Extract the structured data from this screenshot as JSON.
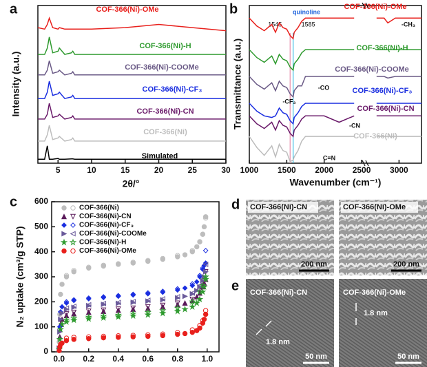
{
  "panel_labels": [
    "a",
    "b",
    "c",
    "d",
    "e"
  ],
  "chart_data": [
    {
      "type": "line",
      "xlabel": "2θ/°",
      "ylabel": "Intensity (a.u.)",
      "xlim": [
        2,
        30
      ],
      "ylim": [
        0,
        10
      ],
      "xticks": [
        5,
        10,
        15,
        20,
        25,
        30
      ],
      "x": [
        2,
        3,
        3.4,
        3.7,
        4.2,
        5,
        5.2,
        6,
        7,
        7.2,
        7.5,
        10,
        15,
        20,
        25,
        30
      ],
      "series": [
        {
          "name": "COF-366(Ni)-OMe",
          "color": "#e8201c",
          "values": [
            8.6,
            8.5,
            8.8,
            9.2,
            8.6,
            8.5,
            8.6,
            8.5,
            8.5,
            8.5,
            8.5,
            8.5,
            8.6,
            8.8,
            8.6,
            8.4
          ]
        },
        {
          "name": "COF-366(Ni)-H",
          "color": "#2e9a2e",
          "values": [
            6.9,
            6.9,
            7.3,
            8.0,
            7.0,
            7.1,
            7.3,
            6.9,
            7.0,
            7.1,
            6.9,
            6.9,
            6.9,
            6.9,
            6.9,
            6.9
          ]
        },
        {
          "name": "COF-366(Ni)-COOMe",
          "color": "#6a5a86",
          "values": [
            5.6,
            5.6,
            5.9,
            6.5,
            5.7,
            5.8,
            5.9,
            5.6,
            5.7,
            5.8,
            5.6,
            5.6,
            5.6,
            5.6,
            5.6,
            5.6
          ]
        },
        {
          "name": "COF-366(Ni)-CF₃",
          "color": "#1a2ee0",
          "values": [
            4.1,
            4.1,
            4.5,
            5.2,
            4.3,
            4.4,
            4.5,
            4.1,
            4.2,
            4.3,
            4.1,
            4.1,
            4.1,
            4.1,
            4.1,
            4.1
          ]
        },
        {
          "name": "COF-366(Ni)-CN",
          "color": "#6a1a6a",
          "values": [
            2.8,
            2.8,
            3.1,
            3.8,
            2.9,
            3.0,
            3.1,
            2.8,
            2.9,
            3.0,
            2.8,
            2.8,
            2.8,
            2.8,
            2.8,
            2.8
          ]
        },
        {
          "name": "COF-366(Ni)",
          "color": "#bdbdbd",
          "values": [
            1.4,
            1.4,
            1.8,
            2.4,
            1.5,
            1.6,
            1.7,
            1.4,
            1.5,
            1.6,
            1.4,
            1.4,
            1.4,
            1.4,
            1.4,
            1.4
          ]
        },
        {
          "name": "Simulated",
          "color": "#000000",
          "values": [
            0.25,
            0.25,
            1.1,
            0.25,
            0.25,
            0.3,
            0.25,
            0.25,
            0.27,
            0.27,
            0.25,
            0.25,
            0.25,
            0.25,
            0.25,
            0.25
          ]
        }
      ]
    },
    {
      "type": "line",
      "xlabel": "Wavenumber (cm⁻¹)",
      "ylabel": "Transmittance (a.u.)",
      "xlim": [
        1000,
        3300
      ],
      "ylim": [
        0,
        10
      ],
      "xticks": [
        1000,
        1500,
        2000,
        2500,
        3000
      ],
      "x": [
        1000,
        1100,
        1200,
        1300,
        1350,
        1400,
        1450,
        1500,
        1545,
        1585,
        1600,
        1650,
        1700,
        1750,
        1800,
        2000,
        2200,
        2400,
        2550,
        2700,
        2800,
        2850,
        2950,
        3100,
        3300
      ],
      "vlines": [
        {
          "x": 1545,
          "color": "#e88aa8"
        },
        {
          "x": 1585,
          "color": "#33b8e0"
        }
      ],
      "annotations": [
        "quinoline",
        "-CH₃",
        "-CO",
        "-CF₃",
        "-CN",
        "C=N"
      ],
      "series": [
        {
          "name": "COF-366(Ni)-OMe",
          "color": "#e8201c",
          "values": [
            9.2,
            8.7,
            8.4,
            8.8,
            8.3,
            8.9,
            8.6,
            8.5,
            8.1,
            7.9,
            8.3,
            8.6,
            9.0,
            9.2,
            9.2,
            9.2,
            9.2,
            9.2,
            null,
            9.2,
            9.2,
            8.9,
            9.2,
            9.2,
            9.2
          ]
        },
        {
          "name": "COF-366(Ni)-H",
          "color": "#2e9a2e",
          "values": [
            7.2,
            6.7,
            6.4,
            6.8,
            6.3,
            6.9,
            6.6,
            6.5,
            6.1,
            5.9,
            6.3,
            6.6,
            7.0,
            7.2,
            7.2,
            7.2,
            7.2,
            7.2,
            null,
            7.2,
            7.2,
            7.2,
            7.2,
            7.2,
            7.2
          ]
        },
        {
          "name": "COF-366(Ni)-COOMe",
          "color": "#6a5a86",
          "values": [
            5.5,
            5.0,
            4.7,
            5.1,
            4.6,
            5.2,
            4.9,
            4.8,
            4.4,
            4.2,
            4.6,
            4.9,
            4.9,
            5.5,
            5.5,
            5.5,
            5.5,
            5.5,
            null,
            5.5,
            5.5,
            5.4,
            5.5,
            5.5,
            5.5
          ]
        },
        {
          "name": "COF-366(Ni)-CF₃",
          "color": "#1a2ee0",
          "values": [
            3.8,
            3.3,
            3.0,
            2.9,
            3.0,
            3.5,
            3.2,
            3.1,
            2.7,
            2.5,
            2.9,
            3.2,
            3.6,
            3.8,
            3.8,
            3.8,
            3.8,
            3.8,
            null,
            3.8,
            3.8,
            3.8,
            3.8,
            3.8,
            3.8
          ]
        },
        {
          "name": "COF-366(Ni)-CN",
          "color": "#6a1a6a",
          "values": [
            3.0,
            2.5,
            2.2,
            2.6,
            2.1,
            2.7,
            2.4,
            2.3,
            1.9,
            1.7,
            2.1,
            2.4,
            2.8,
            3.0,
            3.0,
            3.0,
            2.6,
            3.0,
            null,
            3.0,
            3.0,
            3.0,
            3.0,
            3.0,
            3.0
          ]
        },
        {
          "name": "COF-366(Ni)",
          "color": "#bdbdbd",
          "values": [
            1.7,
            1.0,
            0.5,
            1.1,
            0.4,
            1.2,
            0.8,
            0.7,
            0.1,
            0.2,
            0.4,
            0.8,
            1.4,
            1.7,
            1.7,
            1.7,
            1.7,
            1.7,
            null,
            1.7,
            1.7,
            1.7,
            1.7,
            1.7,
            1.7
          ]
        }
      ]
    },
    {
      "type": "scatter",
      "ylabel": "N₂ uptake (cm³/g STP)",
      "xlim": [
        -0.05,
        1.08
      ],
      "ylim": [
        0,
        600
      ],
      "xticks": [
        {
          "value": 0,
          "label": "0.0"
        },
        {
          "value": 0.2,
          "label": "0.2"
        },
        {
          "value": 0.4,
          "label": "0.4"
        },
        {
          "value": 0.6,
          "label": "0.6"
        },
        {
          "value": 0.8,
          "label": "0.8"
        },
        {
          "value": 1,
          "label": "1.0"
        }
      ],
      "yticks": [
        0,
        100,
        200,
        300,
        400,
        500,
        600
      ],
      "adsorption_x": [
        0.001,
        0.005,
        0.01,
        0.02,
        0.05,
        0.1,
        0.2,
        0.3,
        0.4,
        0.5,
        0.6,
        0.7,
        0.8,
        0.85,
        0.9,
        0.93,
        0.95,
        0.97,
        0.98,
        0.99
      ],
      "desorption_x": [
        0.99,
        0.97,
        0.95,
        0.9,
        0.8,
        0.7,
        0.6,
        0.5,
        0.4,
        0.3,
        0.2,
        0.1,
        0.05
      ],
      "series": [
        {
          "name": "COF-366(Ni)",
          "color": "#bdbdbd",
          "marker": "circle",
          "adsorption": [
            40,
            150,
            230,
            270,
            300,
            320,
            335,
            343,
            350,
            355,
            362,
            370,
            380,
            388,
            400,
            420,
            440,
            470,
            500,
            540
          ],
          "desorption": [
            535,
            470,
            440,
            405,
            385,
            373,
            365,
            358,
            352,
            346,
            338,
            325,
            305
          ]
        },
        {
          "name": "COF-366(Ni)-CN",
          "color": "#5a1a5a",
          "marker": "triangle",
          "adsorption": [
            10,
            60,
            110,
            130,
            145,
            152,
            158,
            162,
            166,
            170,
            174,
            180,
            188,
            195,
            205,
            220,
            235,
            260,
            275,
            290
          ],
          "desorption": [
            320,
            270,
            245,
            210,
            195,
            186,
            180,
            175,
            171,
            167,
            163,
            158,
            152
          ]
        },
        {
          "name": "COF-366(Ni)-CF₃",
          "color": "#1a2ee0",
          "marker": "diamond",
          "adsorption": [
            20,
            100,
            160,
            180,
            195,
            205,
            212,
            217,
            222,
            227,
            232,
            238,
            247,
            255,
            265,
            280,
            300,
            330,
            345,
            355
          ],
          "desorption": [
            405,
            335,
            305,
            272,
            252,
            242,
            236,
            230,
            225,
            220,
            215,
            208,
            200
          ]
        },
        {
          "name": "COF-366(Ni)-COOMe",
          "color": "#6a5a9a",
          "marker": "triangle-right",
          "adsorption": [
            15,
            80,
            130,
            155,
            170,
            178,
            185,
            190,
            194,
            198,
            203,
            208,
            216,
            222,
            232,
            245,
            260,
            285,
            300,
            320
          ],
          "desorption": [
            350,
            290,
            265,
            235,
            220,
            212,
            206,
            201,
            197,
            193,
            188,
            182,
            175
          ]
        },
        {
          "name": "COF-366(Ni)-H",
          "color": "#2e9a2e",
          "marker": "star",
          "adsorption": [
            10,
            50,
            90,
            110,
            120,
            127,
            132,
            136,
            140,
            144,
            148,
            154,
            162,
            170,
            180,
            195,
            210,
            240,
            260,
            290
          ],
          "desorption": [
            300,
            265,
            240,
            200,
            175,
            165,
            158,
            152,
            147,
            143,
            139,
            134,
            128
          ]
        },
        {
          "name": "COF-366(Ni)-OMe",
          "color": "#e8201c",
          "marker": "circle",
          "adsorption": [
            5,
            20,
            30,
            35,
            45,
            50,
            53,
            56,
            58,
            60,
            62,
            65,
            70,
            73,
            78,
            85,
            95,
            115,
            130,
            150
          ],
          "desorption": [
            165,
            125,
            105,
            88,
            77,
            71,
            68,
            66,
            64,
            62,
            60,
            58,
            55
          ]
        }
      ]
    }
  ],
  "micrographs": [
    {
      "label": "COF-366(Ni)-CN",
      "scale": "200 nm"
    },
    {
      "label": "COF-366(Ni)-OMe",
      "scale": "200 nm"
    },
    {
      "label": "COF-366(Ni)-CN",
      "scale": "50 nm",
      "spacing": "1.8 nm"
    },
    {
      "label": "COF-366(Ni)-OMe",
      "scale": "50 nm",
      "spacing": "1.8 nm"
    }
  ]
}
